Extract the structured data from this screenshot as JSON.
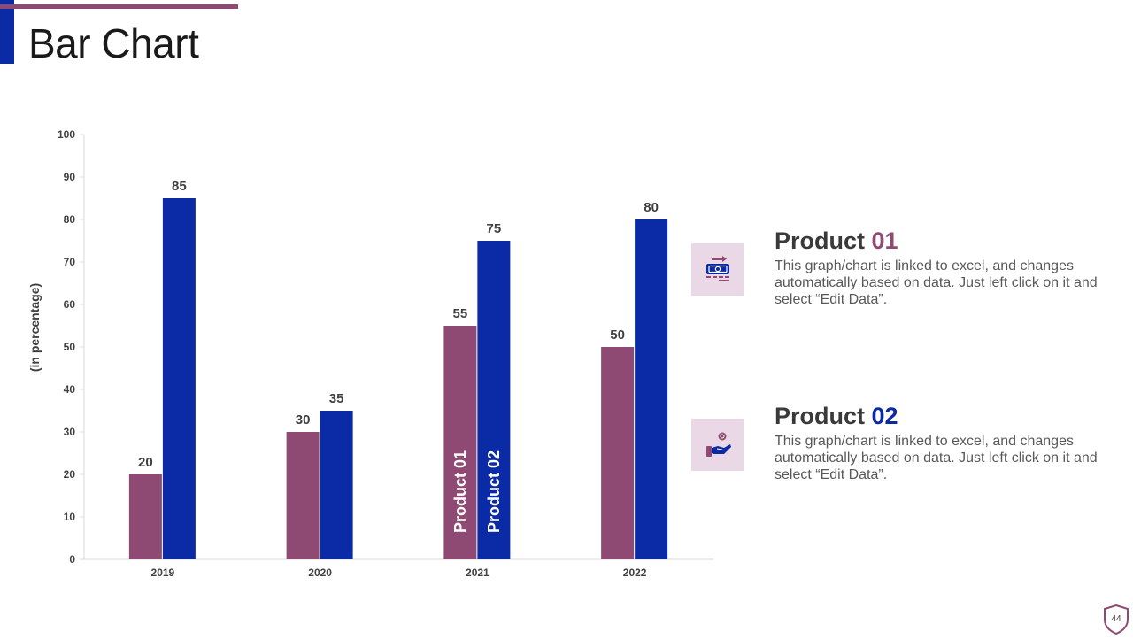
{
  "slide": {
    "title": "Bar Chart",
    "page_number": "44"
  },
  "colors": {
    "product01": "#8e4a72",
    "product02": "#0a2aa6",
    "accent": "#0a2aa6"
  },
  "chart_data": {
    "type": "bar",
    "title": "",
    "xlabel": "",
    "ylabel": "(in percentage)",
    "ylim": [
      0,
      100
    ],
    "yticks": [
      0,
      10,
      20,
      30,
      40,
      50,
      60,
      70,
      80,
      90,
      100
    ],
    "categories": [
      "2019",
      "2020",
      "2021",
      "2022"
    ],
    "series": [
      {
        "name": "Product 01",
        "values": [
          20,
          30,
          55,
          50
        ]
      },
      {
        "name": "Product 02",
        "values": [
          85,
          35,
          75,
          80
        ]
      }
    ],
    "in_bar_series_labels_category": "2021"
  },
  "legend": [
    {
      "title_prefix": "Product ",
      "title_number": "01",
      "description": "This graph/chart is linked to excel, and changes automatically based on data. Just left click on it and select “Edit Data”.",
      "icon": "money-transfer-icon"
    },
    {
      "title_prefix": "Product ",
      "title_number": "02",
      "description": "This graph/chart is linked to excel, and changes automatically based on data. Just left click on it and select “Edit Data”.",
      "icon": "hand-coin-icon"
    }
  ]
}
